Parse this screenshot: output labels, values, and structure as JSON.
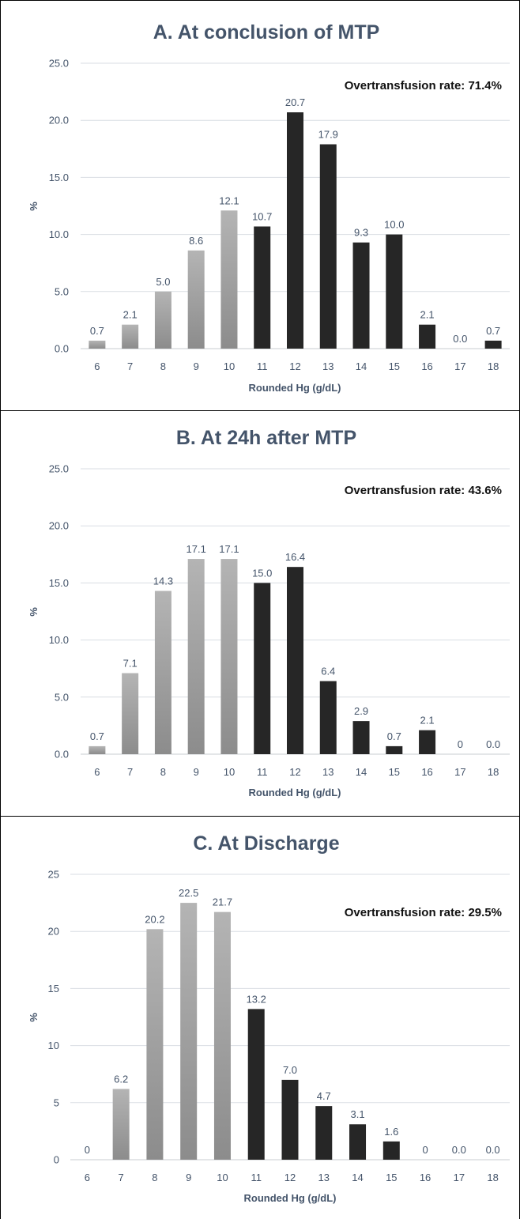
{
  "colors": {
    "below_threshold_top": "#b4b4b4",
    "below_threshold_bottom": "#8c8c8c",
    "over_threshold": "#262626",
    "text": "#44546a"
  },
  "chart_data": [
    {
      "type": "bar",
      "title": "A. At conclusion of MTP",
      "xlabel": "Rounded Hg (g/dL)",
      "ylabel": "%",
      "ylim": [
        0,
        25
      ],
      "yticks": [
        "0.0",
        "5.0",
        "10.0",
        "15.0",
        "20.0",
        "25.0"
      ],
      "grid": true,
      "annotation": "Overtransfusion rate: 71.4%",
      "categories": [
        "6",
        "7",
        "8",
        "9",
        "10",
        "11",
        "12",
        "13",
        "14",
        "15",
        "16",
        "17",
        "18"
      ],
      "values": [
        0.7,
        2.1,
        5.0,
        8.6,
        12.1,
        10.7,
        20.7,
        17.9,
        9.3,
        10.0,
        2.1,
        0.0,
        0.7
      ],
      "labels": [
        "0.7",
        "2.1",
        "5.0",
        "8.6",
        "12.1",
        "10.7",
        "20.7",
        "17.9",
        "9.3",
        "10.0",
        "2.1",
        "0.0",
        "0.7"
      ],
      "over_threshold": [
        false,
        false,
        false,
        false,
        false,
        true,
        true,
        true,
        true,
        true,
        true,
        true,
        true
      ]
    },
    {
      "type": "bar",
      "title": "B. At 24h after MTP",
      "xlabel": "Rounded Hg (g/dL)",
      "ylabel": "%",
      "ylim": [
        0,
        25
      ],
      "yticks": [
        "0.0",
        "5.0",
        "10.0",
        "15.0",
        "20.0",
        "25.0"
      ],
      "grid": true,
      "annotation": "Overtransfusion rate: 43.6%",
      "categories": [
        "6",
        "7",
        "8",
        "9",
        "10",
        "11",
        "12",
        "13",
        "14",
        "15",
        "16",
        "17",
        "18"
      ],
      "values": [
        0.7,
        7.1,
        14.3,
        17.1,
        17.1,
        15.0,
        16.4,
        6.4,
        2.9,
        0.7,
        2.1,
        0,
        0.0
      ],
      "labels": [
        "0.7",
        "7.1",
        "14.3",
        "17.1",
        "17.1",
        "15.0",
        "16.4",
        "6.4",
        "2.9",
        "0.7",
        "2.1",
        "0",
        "0.0"
      ],
      "over_threshold": [
        false,
        false,
        false,
        false,
        false,
        true,
        true,
        true,
        true,
        true,
        true,
        true,
        true
      ]
    },
    {
      "type": "bar",
      "title": "C. At Discharge",
      "xlabel": "Rounded Hg (g/dL)",
      "ylabel": "%",
      "ylim": [
        0,
        25
      ],
      "yticks": [
        "0",
        "5",
        "10",
        "15",
        "20",
        "25"
      ],
      "grid": true,
      "annotation": "Overtransfusion rate: 29.5%",
      "categories": [
        "6",
        "7",
        "8",
        "9",
        "10",
        "11",
        "12",
        "13",
        "14",
        "15",
        "16",
        "17",
        "18"
      ],
      "values": [
        0,
        6.2,
        20.2,
        22.5,
        21.7,
        13.2,
        7.0,
        4.7,
        3.1,
        1.6,
        0,
        0.0,
        0.0
      ],
      "labels": [
        "0",
        "6.2",
        "20.2",
        "22.5",
        "21.7",
        "13.2",
        "7.0",
        "4.7",
        "3.1",
        "1.6",
        "0",
        "0.0",
        "0.0"
      ],
      "over_threshold": [
        false,
        false,
        false,
        false,
        false,
        true,
        true,
        true,
        true,
        true,
        true,
        true,
        true
      ]
    }
  ]
}
